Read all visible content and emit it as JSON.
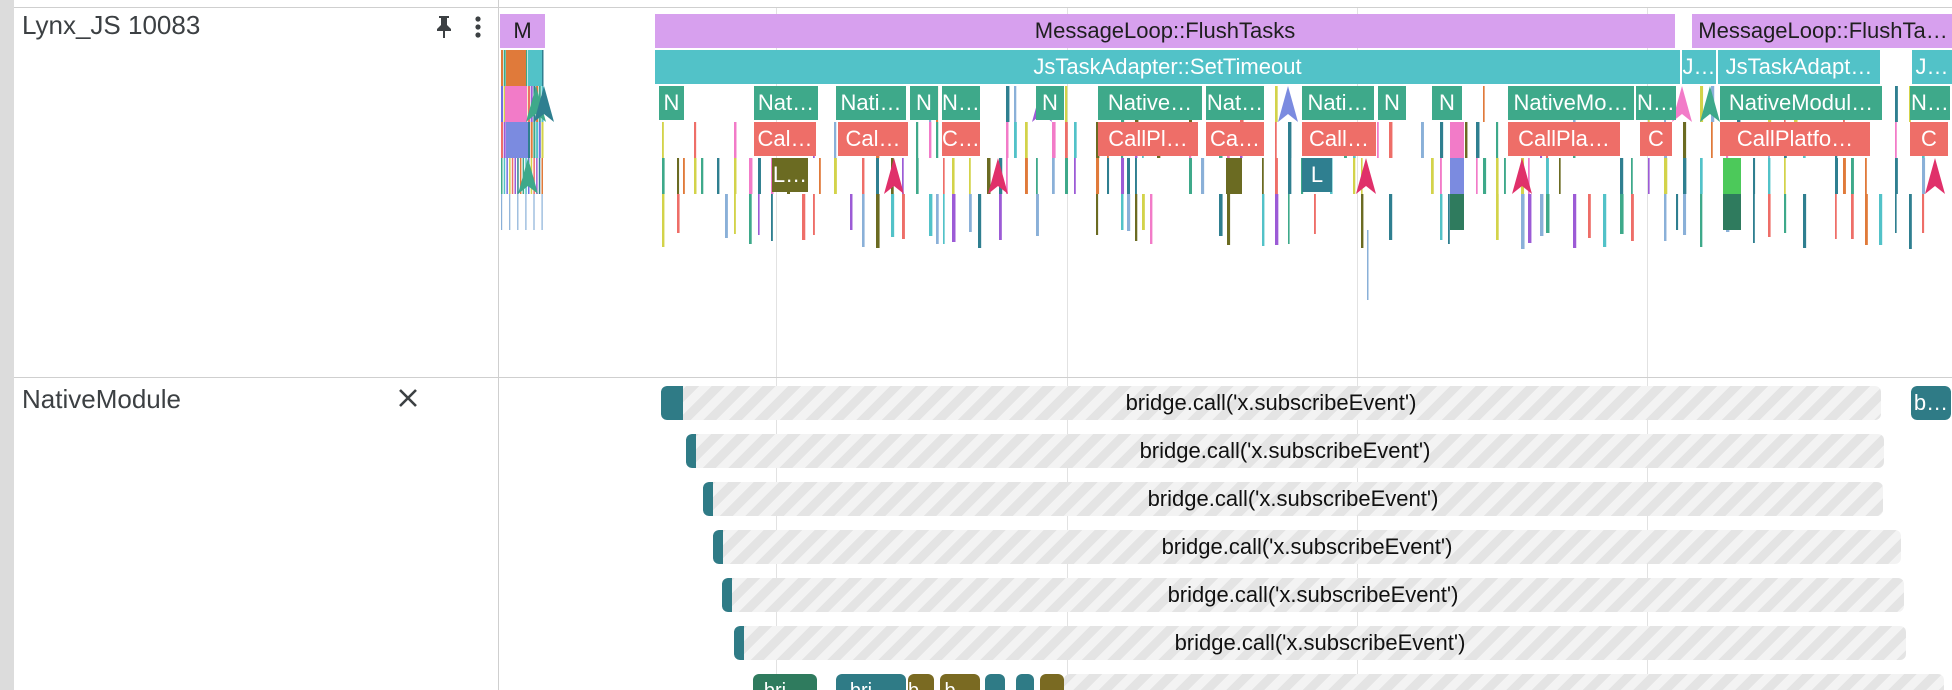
{
  "tracks": [
    {
      "title": "Lynx_JS 10083",
      "actions": {
        "pin_icon": "pin-icon",
        "more_icon": "more-vert-icon"
      }
    },
    {
      "title": "NativeModule",
      "actions": {
        "close_icon": "close-icon"
      }
    }
  ],
  "thread_slices": [
    {
      "label": "M",
      "depth": 0,
      "color": "#d7a0ee",
      "text": "dark"
    },
    {
      "label": "MessageLoop::FlushTasks",
      "depth": 0,
      "color": "#d7a0ee",
      "text": "dark"
    },
    {
      "label": "MessageLoop::FlushTa…",
      "depth": 0,
      "color": "#d7a0ee",
      "text": "dark"
    },
    {
      "label": "JsTaskAdapter::SetTimeout",
      "depth": 1,
      "color": "#52c2c8",
      "text": "light"
    },
    {
      "label": "J…",
      "depth": 1,
      "color": "#52c2c8",
      "text": "light"
    },
    {
      "label": "JsTaskAdapt…",
      "depth": 1,
      "color": "#52c2c8",
      "text": "light"
    },
    {
      "label": "J…",
      "depth": 1,
      "color": "#52c2c8",
      "text": "light"
    },
    {
      "label": "N",
      "depth": 2,
      "color": "#3ea98a",
      "text": "light"
    },
    {
      "label": "Nat…",
      "depth": 2,
      "color": "#3ea98a",
      "text": "light"
    },
    {
      "label": "Nati…",
      "depth": 2,
      "color": "#3ea98a",
      "text": "light"
    },
    {
      "label": "N",
      "depth": 2,
      "color": "#3ea98a",
      "text": "light"
    },
    {
      "label": "N…",
      "depth": 2,
      "color": "#3ea98a",
      "text": "light"
    },
    {
      "label": "N",
      "depth": 2,
      "color": "#3ea98a",
      "text": "light"
    },
    {
      "label": "Native…",
      "depth": 2,
      "color": "#3ea98a",
      "text": "light"
    },
    {
      "label": "Nat…",
      "depth": 2,
      "color": "#3ea98a",
      "text": "light"
    },
    {
      "label": "Nati…",
      "depth": 2,
      "color": "#3ea98a",
      "text": "light"
    },
    {
      "label": "N",
      "depth": 2,
      "color": "#3ea98a",
      "text": "light"
    },
    {
      "label": "N",
      "depth": 2,
      "color": "#3ea98a",
      "text": "light"
    },
    {
      "label": "NativeMo…",
      "depth": 2,
      "color": "#3ea98a",
      "text": "light"
    },
    {
      "label": "N…",
      "depth": 2,
      "color": "#3ea98a",
      "text": "light"
    },
    {
      "label": "NativeModul…",
      "depth": 2,
      "color": "#3ea98a",
      "text": "light"
    },
    {
      "label": "N…",
      "depth": 2,
      "color": "#3ea98a",
      "text": "light"
    },
    {
      "label": "Cal…",
      "depth": 3,
      "color": "#ee6e68",
      "text": "light"
    },
    {
      "label": "Cal…",
      "depth": 3,
      "color": "#ee6e68",
      "text": "light"
    },
    {
      "label": "C…",
      "depth": 3,
      "color": "#ee6e68",
      "text": "light"
    },
    {
      "label": "CallPl…",
      "depth": 3,
      "color": "#ee6e68",
      "text": "light"
    },
    {
      "label": "Ca…",
      "depth": 3,
      "color": "#ee6e68",
      "text": "light"
    },
    {
      "label": "Call…",
      "depth": 3,
      "color": "#ee6e68",
      "text": "light"
    },
    {
      "label": "CallPla…",
      "depth": 3,
      "color": "#ee6e68",
      "text": "light"
    },
    {
      "label": "C",
      "depth": 3,
      "color": "#ee6e68",
      "text": "light"
    },
    {
      "label": "CallPlatfo…",
      "depth": 3,
      "color": "#ee6e68",
      "text": "light"
    },
    {
      "label": "C",
      "depth": 3,
      "color": "#ee6e68",
      "text": "light"
    },
    {
      "label": "L…",
      "depth": 4,
      "color": "#6b6b22",
      "text": "light"
    },
    {
      "label": "L",
      "depth": 4,
      "color": "#2f7f90",
      "text": "light"
    }
  ],
  "async_slices": [
    {
      "label": "bridge.call('x.subscribeEvent')",
      "depth": 0
    },
    {
      "label": "bridge.call('x.subscribeEvent')",
      "depth": 1
    },
    {
      "label": "bridge.call('x.subscribeEvent')",
      "depth": 2
    },
    {
      "label": "bridge.call('x.subscribeEvent')",
      "depth": 3
    },
    {
      "label": "bridge.call('x.subscribeEvent')",
      "depth": 4
    },
    {
      "label": "bridge.call('x.subscribeEvent')",
      "depth": 5
    },
    {
      "label": "b…",
      "depth": 0
    }
  ],
  "partial_slices": [
    {
      "label": "bri…",
      "color": "#2f7b5e"
    },
    {
      "label": "bri…",
      "color": "#2f7b86"
    },
    {
      "label": "b…",
      "color": "#7a6a22"
    },
    {
      "label": "b…",
      "color": "#7a6a22"
    }
  ]
}
